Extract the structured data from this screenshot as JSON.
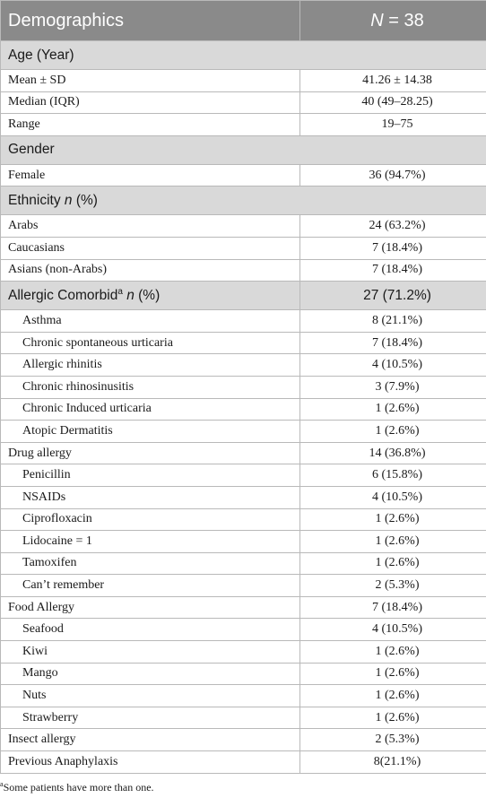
{
  "header": {
    "col1": "Demographics",
    "col2_italic": "N",
    "col2_rest": " = 38"
  },
  "age": {
    "title": "Age (Year)",
    "rows": [
      {
        "label": "Mean ± SD",
        "value": "41.26 ± 14.38"
      },
      {
        "label": "Median (IQR)",
        "value": "40 (49–28.25)"
      },
      {
        "label": "Range",
        "value": "19–75"
      }
    ]
  },
  "gender": {
    "title": "Gender",
    "rows": [
      {
        "label": "Female",
        "value": "36 (94.7%)"
      }
    ]
  },
  "ethnicity": {
    "title": "Ethnicity ",
    "title_italic": "n",
    "title_rest": " (%)",
    "rows": [
      {
        "label": "Arabs",
        "value": "24 (63.2%)"
      },
      {
        "label": "Caucasians",
        "value": "7 (18.4%)"
      },
      {
        "label": "Asians (non-Arabs)",
        "value": "7 (18.4%)"
      }
    ]
  },
  "allergic": {
    "title": "Allergic Comorbid",
    "sup": "a",
    "title_italic": "n",
    "title_rest": " (%)",
    "value": "27 (71.2%)",
    "rows": [
      {
        "label": "Asthma",
        "value": "8 (21.1%)"
      },
      {
        "label": "Chronic spontaneous urticaria",
        "value": "7 (18.4%)"
      },
      {
        "label": "Allergic rhinitis",
        "value": "4 (10.5%)"
      },
      {
        "label": "Chronic rhinosinusitis",
        "value": "3 (7.9%)"
      },
      {
        "label": "Chronic Induced urticaria",
        "value": "1 (2.6%)"
      },
      {
        "label": "Atopic Dermatitis",
        "value": "1 (2.6%)"
      }
    ]
  },
  "drug": {
    "label": "Drug allergy",
    "value": "14 (36.8%)",
    "rows": [
      {
        "label": "Penicillin",
        "value": "6 (15.8%)"
      },
      {
        "label": "NSAIDs",
        "value": "4 (10.5%)"
      },
      {
        "label": "Ciprofloxacin",
        "value": "1 (2.6%)"
      },
      {
        "label": "Lidocaine = 1",
        "value": "1 (2.6%)"
      },
      {
        "label": "Tamoxifen",
        "value": "1 (2.6%)"
      },
      {
        "label": "Can’t remember",
        "value": "2 (5.3%)"
      }
    ]
  },
  "food": {
    "label": "Food Allergy",
    "value": "7 (18.4%)",
    "rows": [
      {
        "label": "Seafood",
        "value": "4 (10.5%)"
      },
      {
        "label": "Kiwi",
        "value": "1 (2.6%)"
      },
      {
        "label": "Mango",
        "value": "1 (2.6%)"
      },
      {
        "label": "Nuts",
        "value": "1 (2.6%)"
      },
      {
        "label": "Strawberry",
        "value": "1 (2.6%)"
      }
    ]
  },
  "insect": {
    "label": "Insect allergy",
    "value": "2 (5.3%)"
  },
  "anaphylaxis": {
    "label": "Previous Anaphylaxis",
    "value": "8(21.1%)"
  },
  "footnote": {
    "sup": "a",
    "text": "Some patients have more than one."
  }
}
